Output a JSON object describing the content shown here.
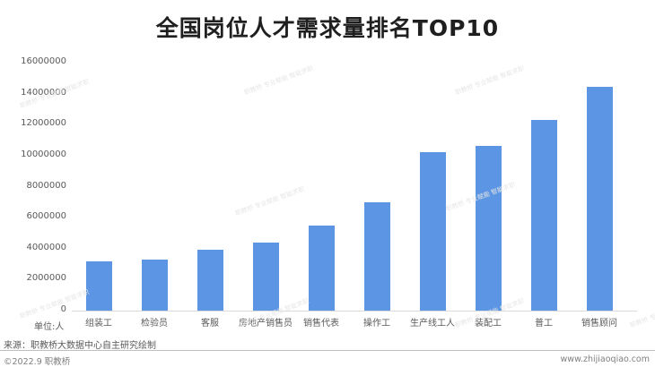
{
  "header": {
    "title": "全国岗位人才需求量排名TOP10"
  },
  "axis": {
    "y_ticks": [
      "16000000",
      "14000000",
      "12000000",
      "10000000",
      "8000000",
      "6000000",
      "4000000",
      "2000000",
      "0"
    ],
    "unit_label": "单位:人"
  },
  "footer": {
    "source": "来源：职教桥大数据中心自主研究绘制",
    "copyright": "©2022.9 职教桥",
    "website": "www.zhijiaoqiao.com"
  },
  "watermark": {
    "text": "职教桥 专业赋能 智能求职"
  },
  "colors": {
    "bar": "#5b95e3",
    "title": "#1f1f1f",
    "axis_text": "#595959"
  },
  "chart_data": {
    "type": "bar",
    "title": "全国岗位人才需求量排名TOP10",
    "xlabel": "",
    "ylabel": "单位:人",
    "ylim": [
      0,
      16000000
    ],
    "yticks": [
      0,
      2000000,
      4000000,
      6000000,
      8000000,
      10000000,
      12000000,
      14000000,
      16000000
    ],
    "grid": false,
    "legend": null,
    "categories": [
      "组装工",
      "检验员",
      "客服",
      "房地产销售员",
      "销售代表",
      "操作工",
      "生产线工人",
      "装配工",
      "普工",
      "销售顾问"
    ],
    "values": [
      3200000,
      3300000,
      3900000,
      4400000,
      5500000,
      7000000,
      10200000,
      10600000,
      12300000,
      14450000
    ]
  }
}
